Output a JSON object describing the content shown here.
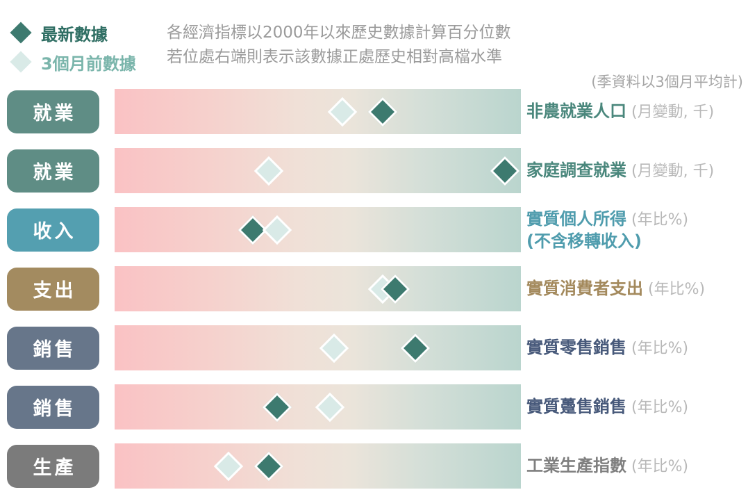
{
  "legend": {
    "latest_label": "最新數據",
    "prev_label": "3個月前數據"
  },
  "header": {
    "line1": "各經濟指標以2000年以來歷史數據計算百分位數",
    "line2": "若位處右端則表示該數據正處歷史相對高檔水準",
    "season_note": "(季資料以3個月平均計)"
  },
  "colors": {
    "latest_marker": "#3d7a6f",
    "prev_marker": "#d9eae7",
    "legend_latest_text": "#2f6e63",
    "legend_prev_text": "#7ab5ab",
    "header_text": "#9b9b9b",
    "paren_text": "#b8b8b8",
    "badge_employment": "#5f8d85",
    "badge_income": "#549fb0",
    "badge_spending": "#a38b60",
    "badge_sales": "#67768a",
    "badge_production": "#7b7b7b"
  },
  "chart_data": {
    "type": "scatter",
    "description": "US economic indicators shown as percentile positions (0-100, since year 2000) on diverging pink-to-teal gradient bars; dark diamond = latest data, light diamond = 3 months ago",
    "x_range": [
      0,
      100
    ],
    "marker_colors": {
      "latest": "#3d7a6f",
      "prev": "#d9eae7"
    },
    "bar_gradient": [
      {
        "color": "#fac2c4",
        "pos": 0
      },
      {
        "color": "#f6d0cc",
        "pos": 22
      },
      {
        "color": "#f0e0d7",
        "pos": 45
      },
      {
        "color": "#ebe4da",
        "pos": 58
      },
      {
        "color": "#d5dfd8",
        "pos": 75
      },
      {
        "color": "#bad5ce",
        "pos": 100
      }
    ],
    "rows": [
      {
        "category": "就業",
        "badge_color": "#5f8d85",
        "label_color": "#4a877c",
        "indicator": "非農就業人口",
        "unit": "(月變動, 千)",
        "latest_percentile": 66,
        "prev_percentile": 56,
        "top_marker": "latest"
      },
      {
        "category": "就業",
        "badge_color": "#5f8d85",
        "label_color": "#4a877c",
        "indicator": "家庭調查就業",
        "unit": "(月變動, 千)",
        "latest_percentile": 96,
        "prev_percentile": 38,
        "top_marker": "latest"
      },
      {
        "category": "收入",
        "badge_color": "#549fb0",
        "label_color": "#4f9cad",
        "indicator": "實質個人所得",
        "unit": "(年比%)",
        "indicator_line2": "(不含移轉收入)",
        "latest_percentile": 34,
        "prev_percentile": 40,
        "top_marker": "prev"
      },
      {
        "category": "支出",
        "badge_color": "#a38b60",
        "label_color": "#a3895c",
        "indicator": "實質消費者支出",
        "unit": "(年比%)",
        "latest_percentile": 69,
        "prev_percentile": 66,
        "top_marker": "latest"
      },
      {
        "category": "銷售",
        "badge_color": "#67768a",
        "label_color": "#47597a",
        "indicator": "實質零售銷售",
        "unit": "(年比%)",
        "latest_percentile": 74,
        "prev_percentile": 54,
        "top_marker": "latest"
      },
      {
        "category": "銷售",
        "badge_color": "#67768a",
        "label_color": "#47597a",
        "indicator": "實質躉售銷售",
        "unit": "(年比%)",
        "latest_percentile": 40,
        "prev_percentile": 53,
        "top_marker": "latest"
      },
      {
        "category": "生產",
        "badge_color": "#7b7b7b",
        "label_color": "#7f7f7f",
        "indicator": "工業生產指數",
        "unit": "(年比%)",
        "latest_percentile": 38,
        "prev_percentile": 28,
        "top_marker": "latest"
      }
    ]
  }
}
